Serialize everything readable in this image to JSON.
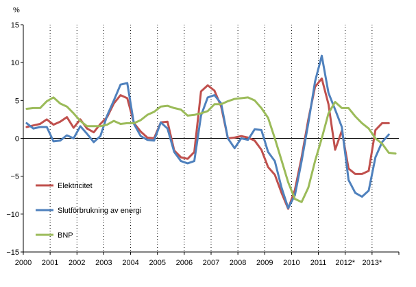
{
  "chart_data": {
    "type": "line",
    "ylabel": "%",
    "ylim": [
      -15,
      15
    ],
    "y_ticks": [
      "15",
      "10",
      "5",
      "0",
      "−5",
      "−10",
      "−15"
    ],
    "x_year_labels": [
      "2000",
      "2001",
      "2002",
      "2003",
      "2004",
      "2005",
      "2006",
      "2007",
      "2008",
      "2009",
      "2010",
      "2011",
      "2012*",
      "2013*"
    ],
    "x_start_year": 2000,
    "periods_per_year": 4,
    "x_grid": "vertical dotted lines between years",
    "y_grid": false,
    "legend_position": "lower-left, inside plot",
    "series": [
      {
        "name": "Elektricitet",
        "color": "#c0504d",
        "values": [
          1.5,
          1.7,
          1.9,
          2.5,
          1.8,
          2.2,
          2.8,
          1.4,
          2.5,
          1.3,
          0.8,
          1.9,
          2.8,
          4.6,
          5.7,
          5.3,
          2.0,
          0.9,
          0.1,
          0.0,
          2.1,
          2.2,
          -1.6,
          -2.5,
          -2.7,
          -1.8,
          6.2,
          7.0,
          6.3,
          4.2,
          0.0,
          0.1,
          0.3,
          0.1,
          -0.3,
          -1.5,
          -3.8,
          -4.8,
          -7.2,
          -9.3,
          -6.8,
          -2.5,
          2.5,
          6.8,
          7.9,
          4.5,
          -1.5,
          1.0,
          -4.0,
          -4.7,
          -4.7,
          -4.3,
          1.1,
          2.0,
          2.0
        ]
      },
      {
        "name": "Slutförbrukning av energi",
        "color": "#4f81bd",
        "values": [
          2.0,
          1.3,
          1.5,
          1.5,
          -0.4,
          -0.3,
          0.4,
          0.0,
          1.6,
          0.6,
          -0.5,
          0.3,
          3.0,
          5.0,
          7.1,
          7.3,
          1.9,
          0.3,
          -0.2,
          -0.3,
          2.1,
          1.3,
          -1.8,
          -3.0,
          -3.3,
          -3.0,
          3.0,
          5.4,
          5.7,
          4.6,
          0.0,
          -1.3,
          0.0,
          -0.2,
          1.2,
          1.1,
          -1.8,
          -3.0,
          -6.5,
          -9.2,
          -7.5,
          -3.0,
          2.0,
          7.5,
          10.9,
          6.0,
          3.8,
          1.5,
          -5.5,
          -7.2,
          -7.7,
          -6.9,
          -2.5,
          -0.5,
          0.5
        ]
      },
      {
        "name": "BNP",
        "color": "#9bbb59",
        "values": [
          3.9,
          4.0,
          4.0,
          4.9,
          5.4,
          4.6,
          4.2,
          3.3,
          2.3,
          1.6,
          1.6,
          1.6,
          1.8,
          2.3,
          1.9,
          2.0,
          2.0,
          2.4,
          3.1,
          3.5,
          4.2,
          4.3,
          4.0,
          3.8,
          3.0,
          3.1,
          3.3,
          3.6,
          4.5,
          4.5,
          4.9,
          5.2,
          5.3,
          5.4,
          5.0,
          4.0,
          2.7,
          0.0,
          -2.9,
          -5.8,
          -8.0,
          -8.4,
          -6.5,
          -3.0,
          0.0,
          3.3,
          4.8,
          4.0,
          4.0,
          2.9,
          2.0,
          1.3,
          0.0,
          -0.7,
          -1.9,
          -2.0
        ]
      }
    ]
  }
}
